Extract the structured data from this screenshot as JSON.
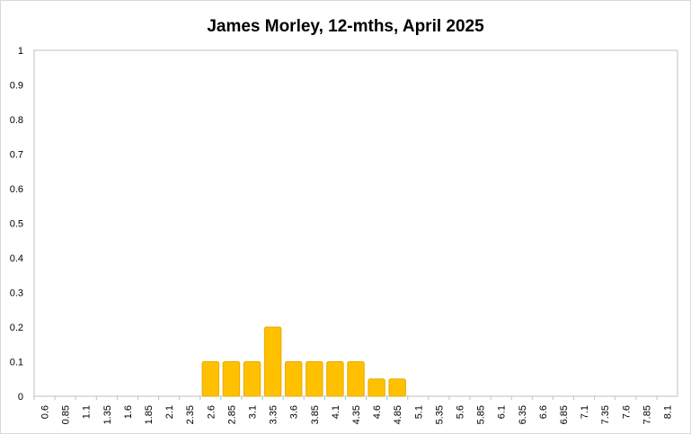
{
  "chart_data": {
    "type": "bar",
    "title": "James Morley, 12-mths, April 2025",
    "xlabel": "",
    "ylabel": "",
    "ylim": [
      0,
      1
    ],
    "yticks": [
      "0",
      "0.1",
      "0.2",
      "0.3",
      "0.4",
      "0.5",
      "0.6",
      "0.7",
      "0.8",
      "0.9",
      "1"
    ],
    "categories": [
      "0.6",
      "0.85",
      "1.1",
      "1.35",
      "1.6",
      "1.85",
      "2.1",
      "2.35",
      "2.6",
      "2.85",
      "3.1",
      "3.35",
      "3.6",
      "3.85",
      "4.1",
      "4.35",
      "4.6",
      "4.85",
      "5.1",
      "5.35",
      "5.6",
      "5.85",
      "6.1",
      "6.35",
      "6.6",
      "6.85",
      "7.1",
      "7.35",
      "7.6",
      "7.85",
      "8.1"
    ],
    "values": [
      0,
      0,
      0,
      0,
      0,
      0,
      0,
      0,
      0.1,
      0.1,
      0.1,
      0.2,
      0.1,
      0.1,
      0.1,
      0.1,
      0.05,
      0.05,
      0,
      0,
      0,
      0,
      0,
      0,
      0,
      0,
      0,
      0,
      0,
      0,
      0
    ],
    "bar_color": "#ffc000",
    "bar_edge_color": "#e6ac00",
    "grid": false,
    "legend": "none"
  }
}
